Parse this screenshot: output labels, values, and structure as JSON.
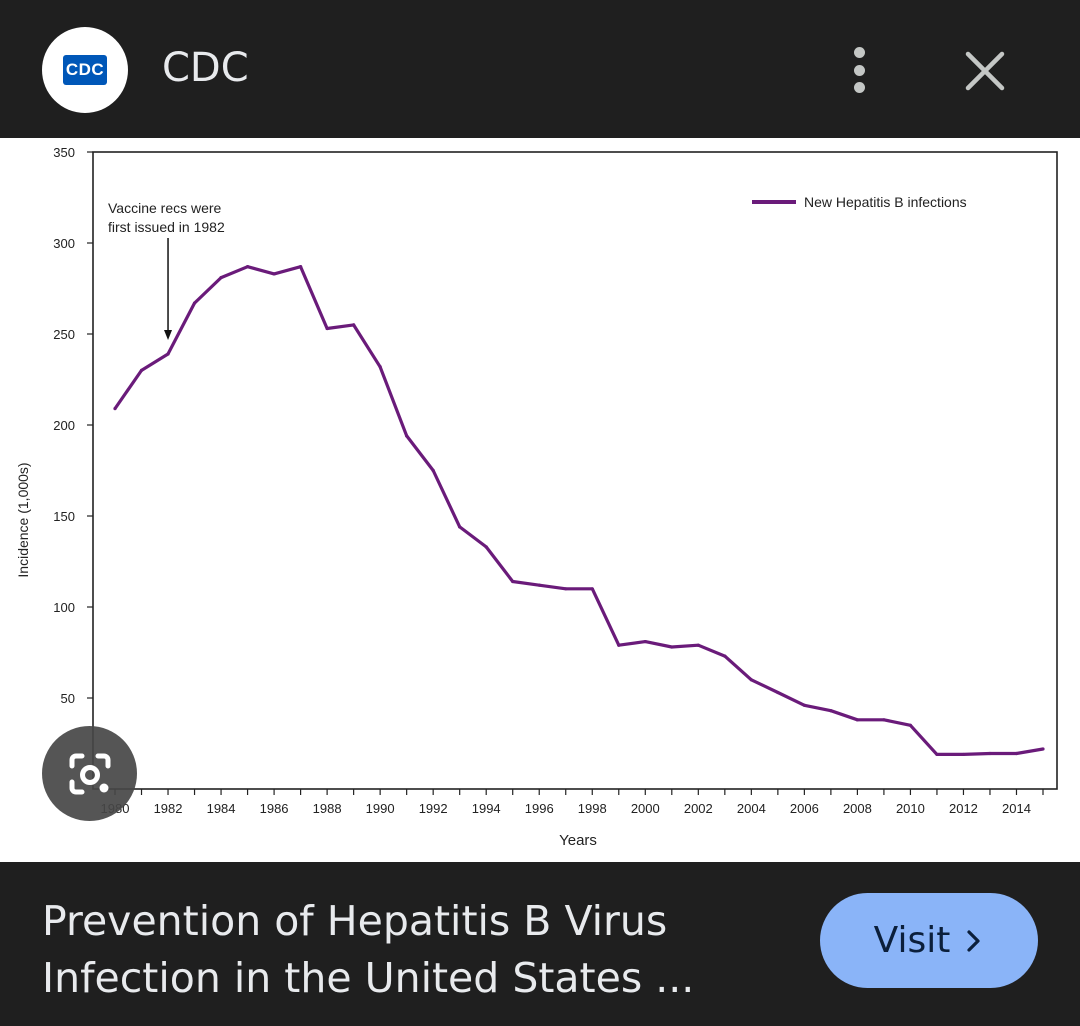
{
  "header": {
    "logo_text": "CDC",
    "site_name": "CDC",
    "more_icon": "more-vert-icon",
    "close_icon": "close-icon"
  },
  "footer": {
    "title": "Prevention of Hepatitis B Virus Infection in the United States ...",
    "visit_label": "Visit",
    "visit_color": "#8ab4f8"
  },
  "lens_icon": "google-lens-icon",
  "chart_data": {
    "type": "line",
    "xlabel": "Years",
    "ylabel": "Incidence (1,000s)",
    "ylim": [
      0,
      350
    ],
    "xlim": [
      1980,
      2015
    ],
    "yticks": [
      50,
      100,
      150,
      200,
      250,
      300,
      350
    ],
    "xticks": [
      1980,
      1982,
      1984,
      1986,
      1988,
      1990,
      1992,
      1994,
      1996,
      1998,
      2000,
      2002,
      2004,
      2006,
      2008,
      2010,
      2012,
      2014
    ],
    "legend_position": "top-right",
    "annotation": {
      "text_line1": "Vaccine recs were",
      "text_line2": "first issued in 1982",
      "x": 1982
    },
    "series": [
      {
        "name": "New Hepatitis B infections",
        "color": "#6a1b7a",
        "x": [
          1980,
          1981,
          1982,
          1983,
          1984,
          1985,
          1986,
          1987,
          1988,
          1989,
          1990,
          1991,
          1992,
          1993,
          1994,
          1995,
          1996,
          1997,
          1998,
          1999,
          2000,
          2001,
          2002,
          2003,
          2004,
          2005,
          2006,
          2007,
          2008,
          2009,
          2010,
          2011,
          2012,
          2013,
          2014,
          2015
        ],
        "y": [
          209,
          230,
          239,
          267,
          281,
          287,
          283,
          287,
          253,
          255,
          232,
          194,
          175,
          144,
          133,
          114,
          112,
          110,
          110,
          79,
          81,
          78,
          79,
          73,
          60,
          53,
          46,
          43,
          38,
          38,
          35,
          19,
          19,
          19.5,
          19.5,
          22
        ]
      }
    ]
  }
}
